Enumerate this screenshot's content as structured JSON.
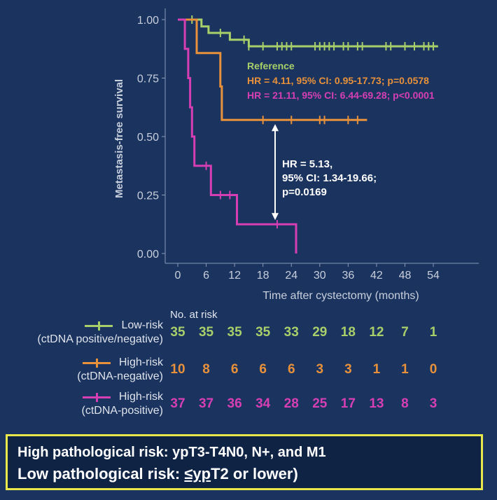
{
  "chart_data": {
    "type": "line",
    "subtype": "kaplan-meier",
    "xlabel": "Time after cystectomy (months)",
    "ylabel": "Metastasis-free survival",
    "xlim": [
      -2,
      56
    ],
    "ylim": [
      0,
      1
    ],
    "x_ticks": [
      0,
      6,
      12,
      18,
      24,
      30,
      36,
      42,
      48,
      54
    ],
    "y_ticks": [
      0.0,
      0.25,
      0.5,
      0.75,
      1.0
    ],
    "y_tick_labels": [
      "0.00",
      "0.25",
      "0.50",
      "0.75",
      "1.00"
    ],
    "grid": false,
    "series": [
      {
        "name": "Low-risk (ctDNA positive/negative)",
        "color": "#a8cf6a",
        "steps": [
          [
            0,
            1.0
          ],
          [
            5,
            1.0
          ],
          [
            5,
            0.971
          ],
          [
            6.5,
            0.971
          ],
          [
            6.5,
            0.943
          ],
          [
            11,
            0.943
          ],
          [
            11,
            0.914
          ],
          [
            15,
            0.914
          ],
          [
            15,
            0.886
          ],
          [
            55,
            0.886
          ]
        ],
        "censor": [
          3,
          9,
          14,
          15,
          18,
          21,
          22,
          23,
          24,
          29,
          30,
          31,
          32,
          33,
          35,
          36,
          38,
          39,
          44,
          45,
          48,
          50,
          52,
          53,
          54
        ]
      },
      {
        "name": "High-risk (ctDNA-negative)",
        "color": "#e8913a",
        "steps": [
          [
            0,
            1.0
          ],
          [
            4,
            1.0
          ],
          [
            4,
            0.857
          ],
          [
            9,
            0.857
          ],
          [
            9,
            0.714
          ],
          [
            9.3,
            0.714
          ],
          [
            9.3,
            0.571
          ],
          [
            40,
            0.571
          ]
        ],
        "censor": [
          18,
          24,
          30,
          31,
          36,
          38
        ]
      },
      {
        "name": "High-risk (ctDNA-positive)",
        "color": "#d63fb4",
        "steps": [
          [
            0,
            1.0
          ],
          [
            1.5,
            1.0
          ],
          [
            1.5,
            0.875
          ],
          [
            2.2,
            0.875
          ],
          [
            2.2,
            0.75
          ],
          [
            2.6,
            0.75
          ],
          [
            2.6,
            0.625
          ],
          [
            3,
            0.625
          ],
          [
            3,
            0.5
          ],
          [
            3.5,
            0.5
          ],
          [
            3.5,
            0.375
          ],
          [
            7,
            0.375
          ],
          [
            7,
            0.25
          ],
          [
            12.5,
            0.25
          ],
          [
            12.5,
            0.125
          ],
          [
            25,
            0.125
          ],
          [
            25,
            0.0
          ]
        ],
        "censor": [
          6,
          9,
          11,
          21
        ]
      }
    ],
    "annotations": {
      "reference": "Reference",
      "hr_orange": "HR = 4.11, 95% CI: 0.95-17.73; p=0.0578",
      "hr_magenta": "HR = 21.11, 95% CI: 6.44-69.28; p<0.0001",
      "hr_between": [
        "HR = 5.13,",
        "95% CI: 1.34-19.66;",
        "p=0.0169"
      ],
      "arrow": {
        "x": 20.5,
        "y_from": 0.125,
        "y_to": 0.571
      }
    }
  },
  "risk_table": {
    "title": "No. at risk",
    "times": [
      0,
      6,
      12,
      18,
      24,
      30,
      36,
      42,
      48,
      54
    ],
    "rows": [
      {
        "label_line1": "Low-risk",
        "label_line2": "(ctDNA positive/negative)",
        "color": "#a8cf6a",
        "values": [
          "35",
          "35",
          "35",
          "35",
          "33",
          "29",
          "18",
          "12",
          "7",
          "1"
        ]
      },
      {
        "label_line1": "High-risk",
        "label_line2": "(ctDNA-negative)",
        "color": "#e8913a",
        "values": [
          "10",
          "8",
          "6",
          "6",
          "6",
          "3",
          "3",
          "1",
          "1",
          "0"
        ]
      },
      {
        "label_line1": "High-risk",
        "label_line2": "(ctDNA-positive)",
        "color": "#d63fb4",
        "values": [
          "37",
          "37",
          "36",
          "34",
          "28",
          "25",
          "17",
          "13",
          "8",
          "3"
        ]
      }
    ]
  },
  "footer": {
    "line1": "High pathological risk: ypT3-T4N0, N+, and M1",
    "line2_prefix": "Low pathological risk: ",
    "line2_le": "≤yp",
    "line2_suffix": "T2 or lower)"
  }
}
